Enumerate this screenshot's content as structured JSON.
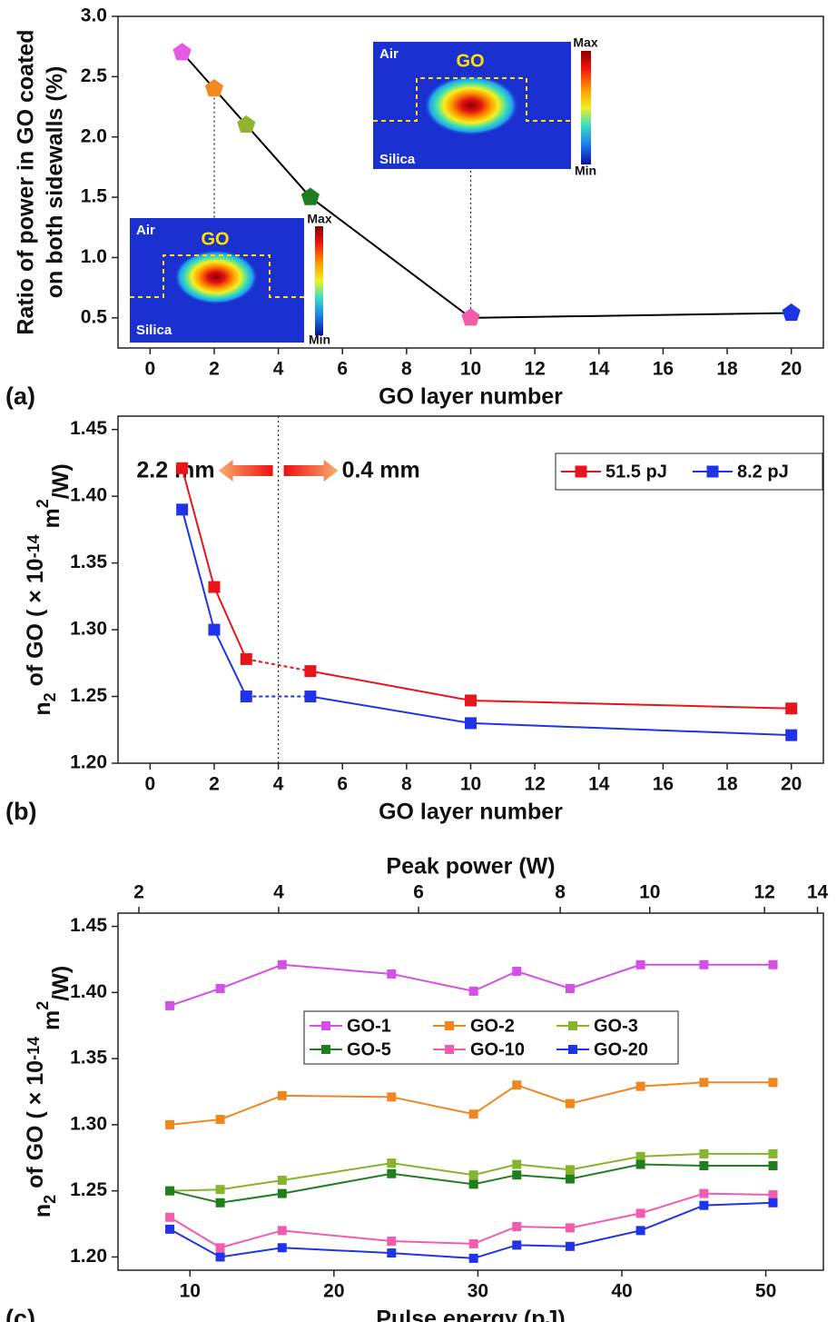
{
  "chart_data": [
    {
      "type": "line",
      "panel_label": "(a)",
      "xlabel": "GO layer number",
      "ylabel": [
        "Ratio of power in GO coated",
        "on both sidewalls (%)"
      ],
      "x": [
        1,
        2,
        3,
        5,
        10,
        20
      ],
      "values": [
        2.7,
        2.4,
        2.1,
        1.5,
        0.5,
        0.54
      ],
      "colors": [
        "#e45ae6",
        "#f28a1e",
        "#8db62c",
        "#1e7d1e",
        "#f25ca8",
        "#1c34e6"
      ],
      "line_color": "#000000",
      "marker": "pentagon",
      "xlim": [
        -1,
        21
      ],
      "xticks": [
        0,
        2,
        4,
        6,
        8,
        10,
        12,
        14,
        16,
        18,
        20
      ],
      "ylim": [
        0.25,
        3
      ],
      "yticks": [
        0.5,
        {
          "value": 1,
          "label": "1.0"
        },
        1.5,
        {
          "value": 2,
          "label": "2.0"
        },
        2.5,
        {
          "value": 3,
          "label": "3.0"
        }
      ],
      "insets": [
        {
          "air": "Air",
          "go": "GO",
          "silica": "Silica",
          "max": "Max",
          "min": "Min"
        },
        {
          "air": "Air",
          "go": "GO",
          "silica": "Silica",
          "max": "Max",
          "min": "Min"
        }
      ]
    },
    {
      "type": "line",
      "panel_label": "(b)",
      "xlabel": "GO layer number",
      "ylabel": [
        "n",
        "2",
        " of GO ( × 10",
        "-14",
        " m",
        "2",
        "/W)"
      ],
      "x": [
        1,
        2,
        3,
        5,
        10,
        20
      ],
      "series": [
        {
          "name": "51.5 pJ",
          "color": "#e8141c",
          "values": [
            1.421,
            1.332,
            1.278,
            1.269,
            1.247,
            1.241
          ]
        },
        {
          "name": "8.2 pJ",
          "color": "#1f33e8",
          "values": [
            1.39,
            1.3,
            1.25,
            1.25,
            1.23,
            1.221
          ]
        }
      ],
      "marker": "square",
      "dashed_between": [
        3,
        5
      ],
      "legend": "upper right",
      "divider_x": 4,
      "arrow_labels": [
        "2.2 mm",
        "0.4 mm"
      ],
      "xlim": [
        -1,
        21
      ],
      "xticks": [
        0,
        2,
        4,
        6,
        8,
        10,
        12,
        14,
        16,
        18,
        20
      ],
      "ylim": [
        1.2,
        1.46
      ],
      "yticks": [
        {
          "value": 1.2,
          "label": "1.20"
        },
        1.25,
        {
          "value": 1.3,
          "label": "1.30"
        },
        1.35,
        {
          "value": 1.4,
          "label": "1.40"
        },
        1.45
      ]
    },
    {
      "type": "line",
      "panel_label": "(c)",
      "xlabel": "Pulse energy (pJ)",
      "x2label": "Peak power (W)",
      "ylabel": [
        "n",
        "2",
        " of GO ( × 10",
        "-14",
        " m",
        "2",
        "/W)"
      ],
      "x": [
        8.6,
        12.1,
        16.4,
        24.0,
        29.7,
        32.7,
        36.4,
        41.3,
        45.7,
        50.5
      ],
      "series": [
        {
          "name": "GO-1",
          "color": "#d44ee8",
          "values": [
            1.39,
            1.403,
            1.421,
            1.414,
            1.401,
            1.416,
            1.403,
            1.421,
            1.421,
            1.421
          ]
        },
        {
          "name": "GO-2",
          "color": "#f0861e",
          "values": [
            1.3,
            1.304,
            1.322,
            1.321,
            1.308,
            1.33,
            1.316,
            1.329,
            1.332,
            1.332
          ]
        },
        {
          "name": "GO-3",
          "color": "#86b42a",
          "values": [
            1.25,
            1.251,
            1.258,
            1.271,
            1.262,
            1.27,
            1.266,
            1.276,
            1.278,
            1.278
          ]
        },
        {
          "name": "GO-5",
          "color": "#1f7f1f",
          "values": [
            1.25,
            1.241,
            1.248,
            1.263,
            1.255,
            1.262,
            1.259,
            1.27,
            1.269,
            1.269
          ]
        },
        {
          "name": "GO-10",
          "color": "#f25cb0",
          "values": [
            1.23,
            1.207,
            1.22,
            1.212,
            1.21,
            1.223,
            1.222,
            1.233,
            1.248,
            1.247
          ]
        },
        {
          "name": "GO-20",
          "color": "#1f33e8",
          "values": [
            1.221,
            1.2,
            1.207,
            1.203,
            1.199,
            1.209,
            1.208,
            1.22,
            1.239,
            1.241
          ]
        }
      ],
      "marker": "square",
      "legend": "center",
      "legend_columns": 3,
      "xlim": [
        5,
        54
      ],
      "xticks": [
        10,
        20,
        30,
        40,
        50
      ],
      "x2ticks": [
        2,
        4,
        6,
        8,
        10,
        12,
        14
      ],
      "x2ticks_at_x": [
        6.45,
        16.16,
        25.88,
        35.72,
        41.94,
        49.91,
        53.59
      ],
      "ylim": [
        1.19,
        1.46
      ],
      "yticks": [
        {
          "value": 1.2,
          "label": "1.20"
        },
        1.25,
        {
          "value": 1.3,
          "label": "1.30"
        },
        1.35,
        {
          "value": 1.4,
          "label": "1.40"
        },
        1.45
      ]
    }
  ]
}
